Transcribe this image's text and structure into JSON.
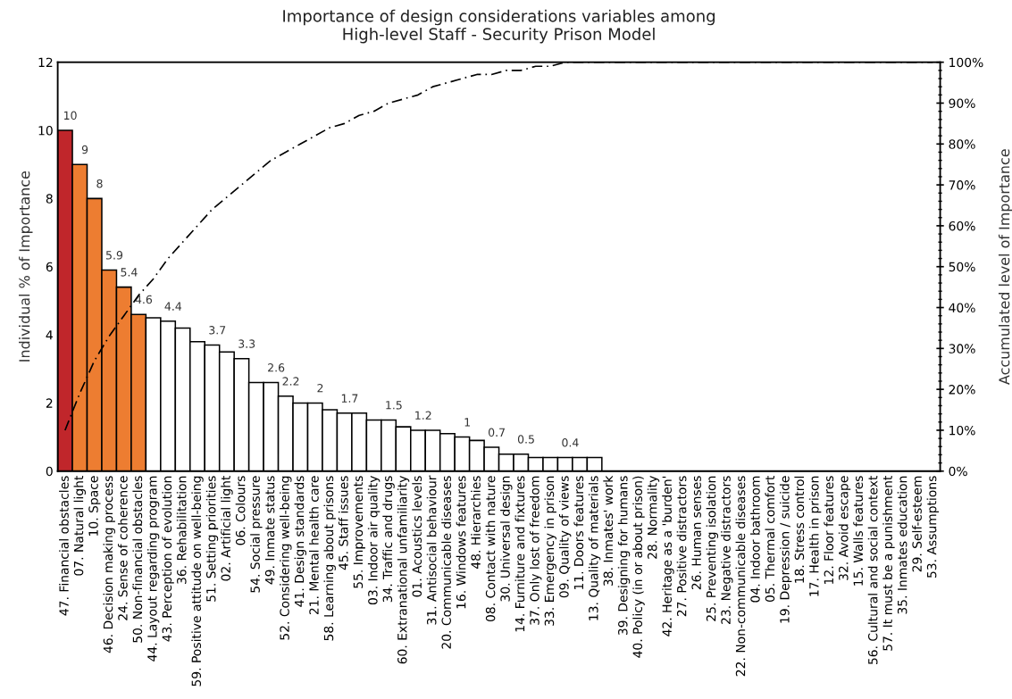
{
  "chart_data": {
    "type": "bar",
    "title": "Importance of design considerations variables among\nHigh-level Staff - Security Prison Model",
    "ylabel": "Individual % of Importance",
    "y2label": "Accumulated level of Importance",
    "categories": [
      "47. Financial obstacles",
      "07. Natural light",
      "10. Space",
      "46. Decision making process",
      "24. Sense of coherence",
      "50. Non-financial obstacles",
      "44. Layout regarding program",
      "43. Perception of evolution",
      "36. Rehabilitation",
      "59. Positive attitude on well-being",
      "51. Setting priorities",
      "02. Artificial light",
      "06. Colours",
      "54. Social pressure",
      "49. Inmate status",
      "52. Considering well-being",
      "41. Design standards",
      "21. Mental health care",
      "58. Learning about prisons",
      "45. Staff issues",
      "55. Improvements",
      "03. Indoor air quality",
      "34. Traffic and drugs",
      "60. Extranational unfamiliarity",
      "01. Acoustics levels",
      "31. Antisocial behaviour",
      "20. Communicable diseases",
      "16. Windows features",
      "48. Hierarchies",
      "08. Contact with nature",
      "30. Universal design",
      "14. Furniture and fixtures",
      "37. Only lost of freedom",
      "33. Emergency in prison",
      "09. Quality of views",
      "11. Doors features",
      "13. Quality of materials",
      "38. Inmates' work",
      "39. Designing for humans",
      "40. Policy (in or about prison)",
      "28. Normality",
      "42. Heritage as a 'burden'",
      "27. Positive distractors",
      "26. Human senses",
      "25. Preventing isolation",
      "23. Negative distractors",
      "22. Non-communicable diseases",
      "04. Indoor bathroom",
      "05. Thermal comfort",
      "19. Depression / suicide",
      "18. Stress control",
      "17. Health in prison",
      "12. Floor features",
      "32. Avoid escape",
      "15. Walls features",
      "56. Cultural and social context",
      "57. It must be a punishment",
      "35. Inmates education",
      "29. Self-esteem",
      "53. Assumptions"
    ],
    "series": [
      {
        "colors": [
          "#c0262b",
          "#ed7d31",
          "#ed7d31",
          "#ed7d31",
          "#ed7d31",
          "#ed7d31",
          "#ffffff",
          "#ffffff",
          "#ffffff",
          "#ffffff",
          "#ffffff",
          "#ffffff",
          "#ffffff",
          "#ffffff",
          "#ffffff",
          "#ffffff",
          "#ffffff",
          "#ffffff",
          "#ffffff",
          "#ffffff",
          "#ffffff",
          "#ffffff",
          "#ffffff",
          "#ffffff",
          "#ffffff",
          "#ffffff",
          "#ffffff",
          "#ffffff",
          "#ffffff",
          "#ffffff",
          "#ffffff",
          "#ffffff",
          "#ffffff",
          "#ffffff",
          "#ffffff",
          "#ffffff",
          "#ffffff",
          null,
          null,
          null,
          null,
          null,
          null,
          null,
          null,
          null,
          null,
          null,
          null,
          null,
          null,
          null,
          null,
          null,
          null,
          null,
          null,
          null,
          null,
          null
        ],
        "values": [
          10,
          9,
          8,
          5.9,
          5.4,
          4.6,
          4.5,
          4.4,
          4.2,
          3.8,
          3.7,
          3.5,
          3.3,
          2.6,
          2.6,
          2.2,
          2,
          2,
          1.8,
          1.7,
          1.7,
          1.5,
          1.5,
          1.3,
          1.2,
          1.2,
          1.1,
          1,
          0.9,
          0.7,
          0.5,
          0.5,
          0.4,
          0.4,
          0.4,
          0.4,
          0.4,
          null,
          null,
          null,
          null,
          null,
          null,
          null,
          null,
          null,
          null,
          null,
          null,
          null,
          null,
          null,
          null,
          null,
          null,
          null,
          null,
          null,
          null,
          null
        ],
        "value_labels": [
          "10",
          "9",
          "8",
          "5.9",
          "5.4",
          "4.6",
          null,
          "4.4",
          null,
          null,
          "3.7",
          null,
          "3.3",
          null,
          "2.6",
          "2.2",
          null,
          "2",
          null,
          "1.7",
          null,
          null,
          "1.5",
          null,
          "1.2",
          null,
          null,
          "1",
          null,
          "0.7",
          null,
          "0.5",
          null,
          null,
          "0.4",
          null,
          null,
          null,
          null,
          null,
          null,
          null,
          null,
          null,
          null,
          null,
          null,
          null,
          null,
          null,
          null,
          null,
          null,
          null,
          null,
          null,
          null,
          null,
          null,
          null
        ]
      },
      {
        "type": "line",
        "axis": "y2",
        "color": "#000000",
        "line_style": "dashed",
        "values": [
          10,
          19,
          27,
          33,
          38,
          43,
          47,
          52,
          56,
          60,
          64,
          67,
          70,
          73,
          76,
          78,
          80,
          82,
          84,
          85,
          87,
          88,
          90,
          91,
          92,
          94,
          95,
          96,
          97,
          97,
          98,
          98,
          99,
          99,
          100,
          100,
          100,
          100,
          100,
          100,
          100,
          100,
          100,
          100,
          100,
          100,
          100,
          100,
          100,
          100,
          100,
          100,
          100,
          100,
          100,
          100,
          100,
          100,
          100,
          100
        ]
      }
    ],
    "ylim": [
      0,
      12
    ],
    "yticks": [
      0,
      2,
      4,
      6,
      8,
      10,
      12
    ],
    "y2lim": [
      0,
      100
    ],
    "y2ticks": [
      {
        "value": 0,
        "label": "0%"
      },
      {
        "value": 2,
        "label": null
      },
      {
        "value": 4,
        "label": null
      },
      {
        "value": 6,
        "label": null
      },
      {
        "value": 8,
        "label": null
      },
      {
        "value": 10,
        "label": "10%"
      },
      {
        "value": 12,
        "label": null
      },
      {
        "value": 14,
        "label": null
      },
      {
        "value": 16,
        "label": null
      },
      {
        "value": 18,
        "label": null
      },
      {
        "value": 20,
        "label": "20%"
      },
      {
        "value": 22,
        "label": null
      },
      {
        "value": 24,
        "label": null
      },
      {
        "value": 26,
        "label": null
      },
      {
        "value": 28,
        "label": null
      },
      {
        "value": 30,
        "label": "30%"
      },
      {
        "value": 32,
        "label": null
      },
      {
        "value": 34,
        "label": null
      },
      {
        "value": 36,
        "label": null
      },
      {
        "value": 38,
        "label": null
      },
      {
        "value": 40,
        "label": "40%"
      },
      {
        "value": 42,
        "label": null
      },
      {
        "value": 44,
        "label": null
      },
      {
        "value": 46,
        "label": null
      },
      {
        "value": 48,
        "label": null
      },
      {
        "value": 50,
        "label": "50%"
      },
      {
        "value": 52,
        "label": null
      },
      {
        "value": 54,
        "label": null
      },
      {
        "value": 56,
        "label": null
      },
      {
        "value": 58,
        "label": null
      },
      {
        "value": 60,
        "label": "60%"
      },
      {
        "value": 62,
        "label": null
      },
      {
        "value": 64,
        "label": null
      },
      {
        "value": 66,
        "label": null
      },
      {
        "value": 68,
        "label": null
      },
      {
        "value": 70,
        "label": "70%"
      },
      {
        "value": 72,
        "label": null
      },
      {
        "value": 74,
        "label": null
      },
      {
        "value": 76,
        "label": null
      },
      {
        "value": 78,
        "label": null
      },
      {
        "value": 80,
        "label": "80%"
      },
      {
        "value": 82,
        "label": null
      },
      {
        "value": 84,
        "label": null
      },
      {
        "value": 86,
        "label": null
      },
      {
        "value": 88,
        "label": null
      },
      {
        "value": 90,
        "label": "90%"
      },
      {
        "value": 92,
        "label": null
      },
      {
        "value": 94,
        "label": null
      },
      {
        "value": 96,
        "label": null
      },
      {
        "value": 98,
        "label": null
      },
      {
        "value": 100,
        "label": "100%"
      }
    ],
    "grid": false
  }
}
